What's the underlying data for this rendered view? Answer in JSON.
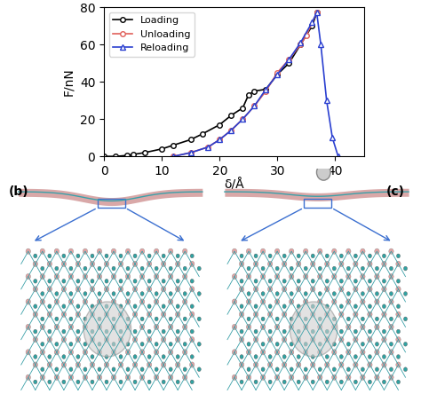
{
  "chart_data": {
    "type": "line",
    "x_label": "δ/Å",
    "y_label": "F/nN",
    "xlim": [
      0,
      45
    ],
    "xticks": [
      0,
      10,
      20,
      30,
      40
    ],
    "ylim": [
      0,
      80
    ],
    "yticks": [
      0,
      20,
      40,
      60,
      80
    ],
    "legend": "upper left",
    "series": [
      {
        "name": "Loading",
        "color": "#000000",
        "marker": "o",
        "line_style": "solid",
        "x": [
          0,
          2,
          4,
          5,
          7,
          10,
          12,
          15,
          17,
          20,
          22,
          24,
          25,
          26,
          28,
          30,
          32,
          34,
          36,
          36.8
        ],
        "values": [
          0,
          0,
          0.5,
          1,
          2,
          4,
          6,
          9,
          12,
          17,
          22,
          26,
          33,
          35,
          36,
          44,
          50,
          60,
          70,
          77
        ]
      },
      {
        "name": "Unloading",
        "color": "#e0605a",
        "marker": "o",
        "line_style": "solid",
        "x": [
          36.8,
          35,
          34,
          32,
          30,
          28,
          26,
          24,
          22,
          20,
          18,
          15,
          12
        ],
        "values": [
          77,
          65,
          60,
          52,
          45,
          35,
          27,
          20,
          14,
          9,
          5,
          2,
          0
        ]
      },
      {
        "name": "Reloading",
        "color": "#2a3fd0",
        "marker": "^",
        "line_style": "solid",
        "x": [
          12,
          15,
          18,
          20,
          22,
          24,
          26,
          28,
          30,
          32,
          34,
          36,
          36.8,
          37.5,
          38.5,
          39.5,
          40.5
        ],
        "values": [
          0,
          2,
          5,
          9,
          14,
          20,
          27,
          36,
          44,
          52,
          61,
          72,
          77,
          60,
          30,
          10,
          0
        ]
      }
    ]
  },
  "panels": [
    "(b)",
    "(c)"
  ]
}
